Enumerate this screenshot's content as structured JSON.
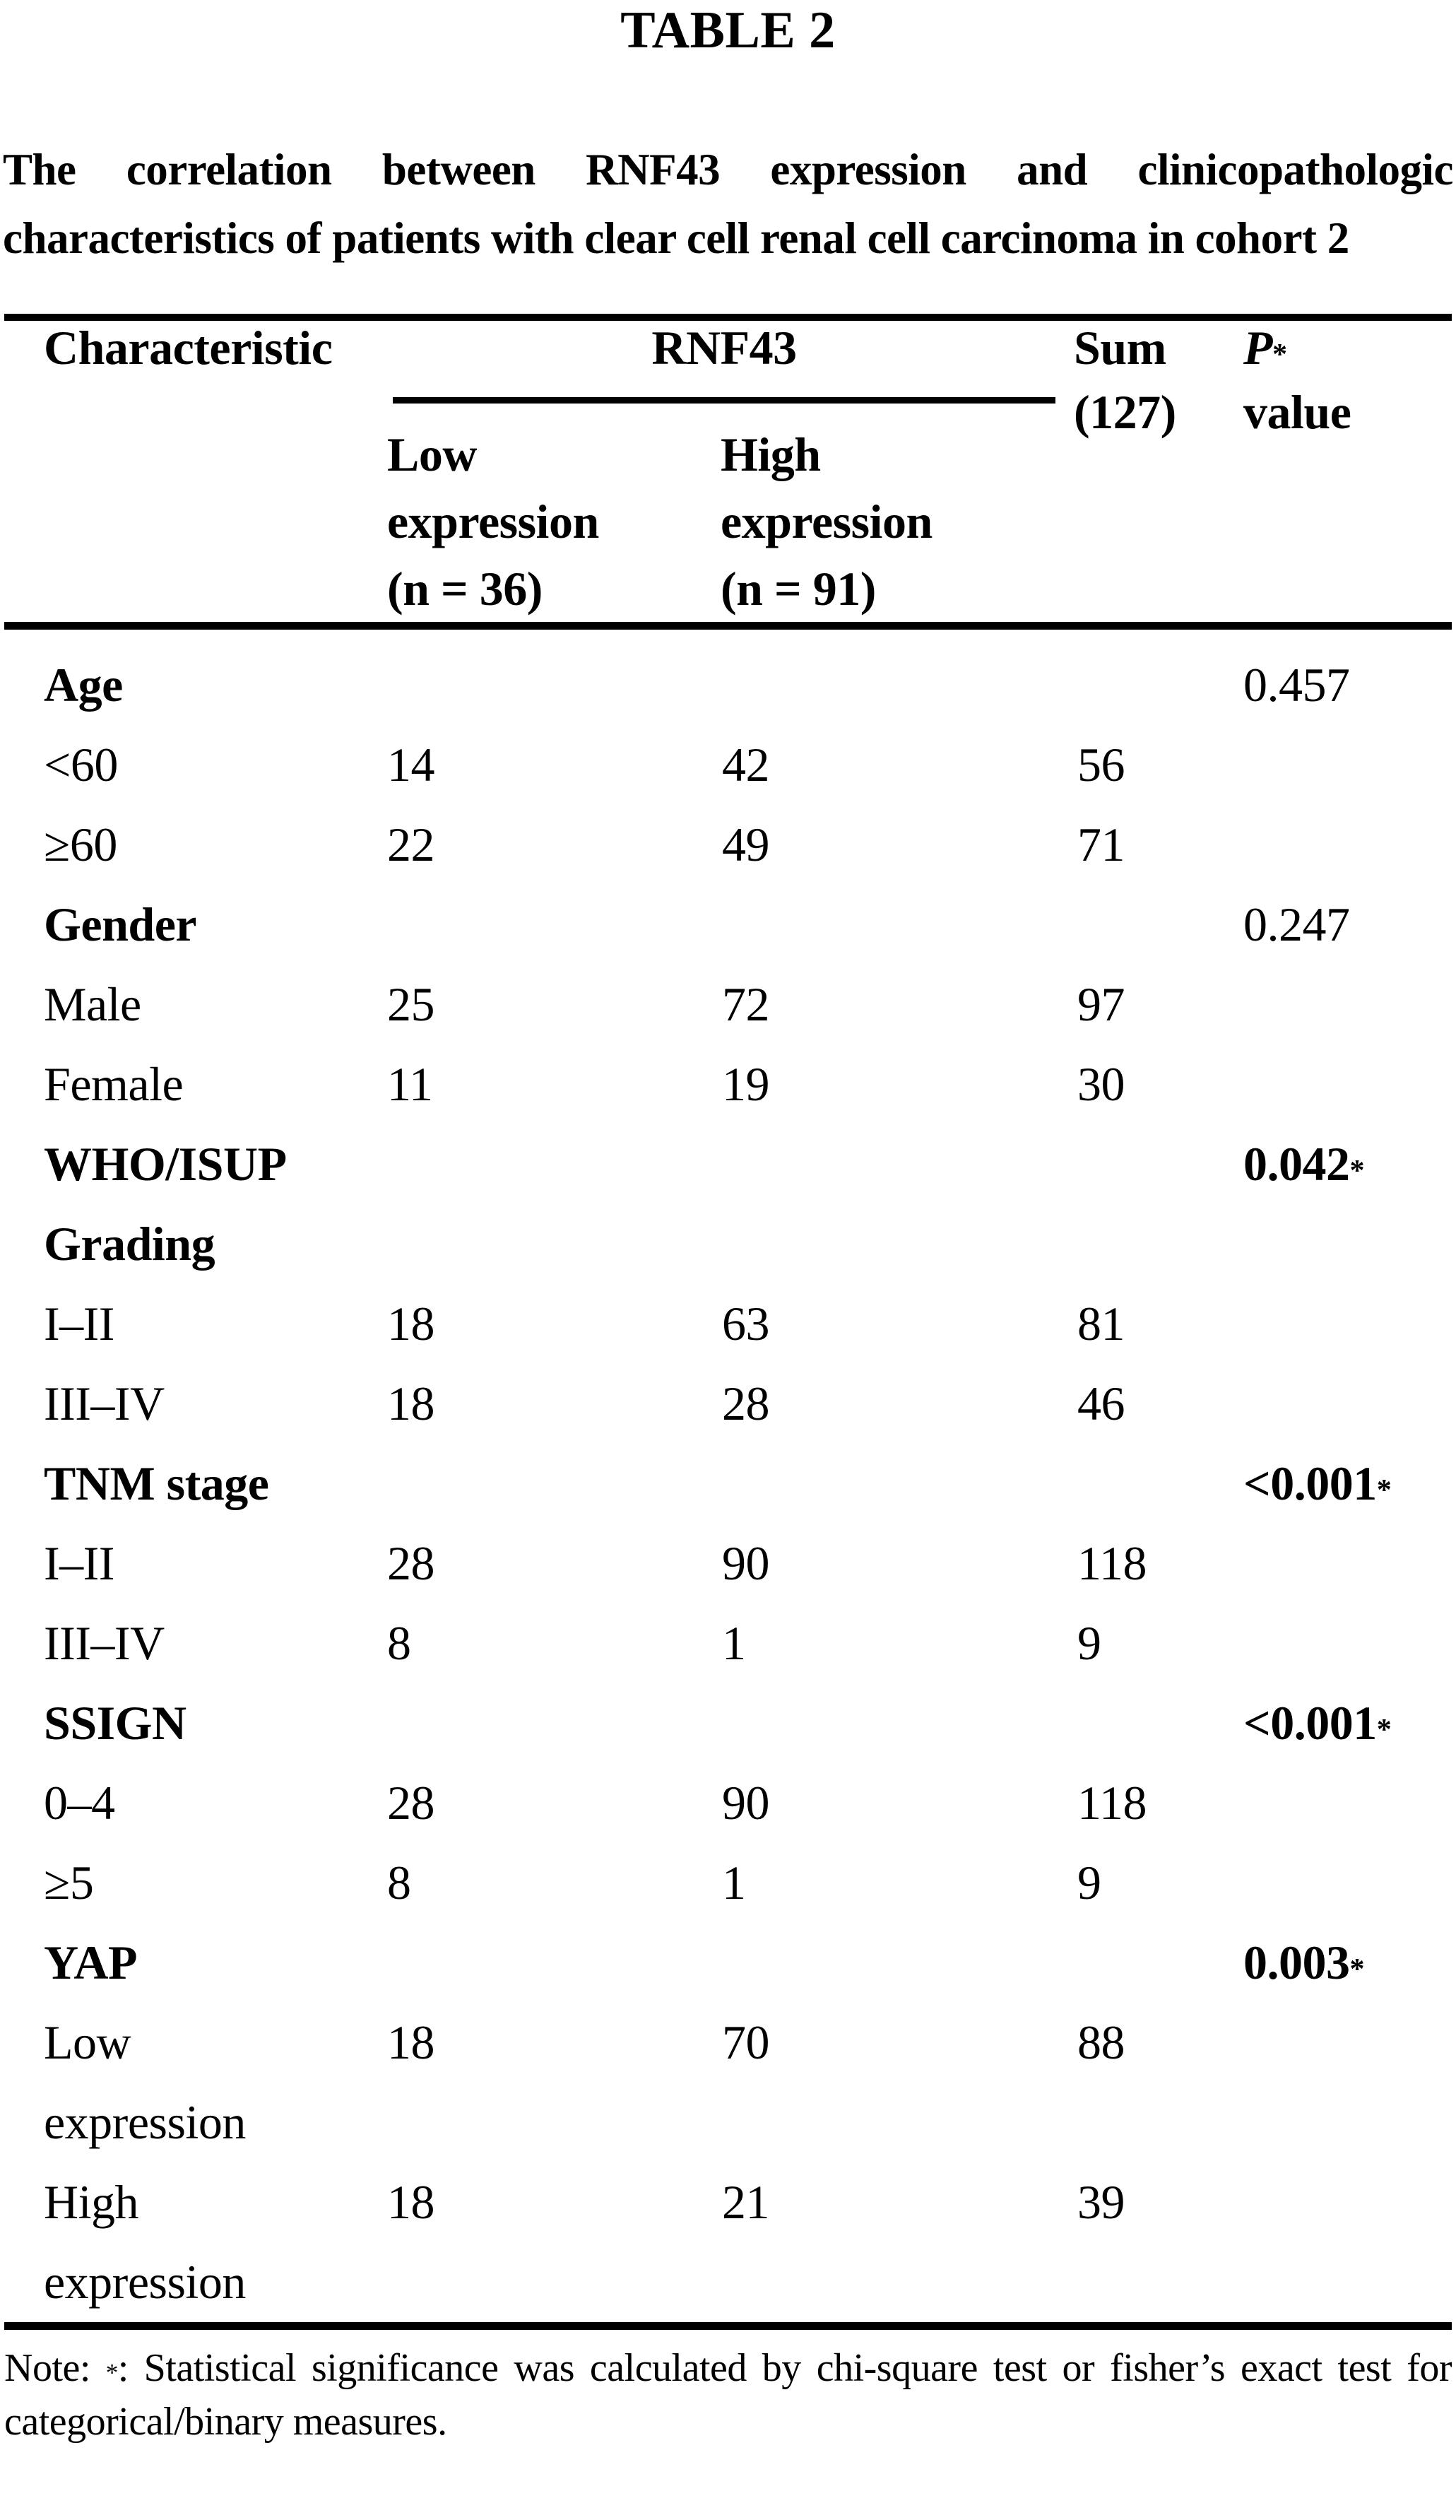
{
  "page": {
    "table_label": "TABLE 2",
    "title": "The correlation between RNF43 expression and clinicopathologic characteristics of patients with clear cell renal cell carcinoma in cohort 2"
  },
  "colors": {
    "text": "#000000",
    "background": "#ffffff",
    "rule": "#000000"
  },
  "header": {
    "characteristic": "Characteristic",
    "group": "RNF43",
    "sum_line1": "Sum",
    "sum_line2": "(127)",
    "p_symbol": "P",
    "p_star": "*",
    "p_word": "value",
    "low_col": "Low\nexpression\n(n = 36)",
    "high_col": "High\nexpression\n(n = 91)"
  },
  "rows": [
    {
      "label": "Age",
      "low": "",
      "high": "",
      "sum": "",
      "p": "0.457",
      "sig": false,
      "category": true
    },
    {
      "label": "<60",
      "low": "14",
      "high": "42",
      "sum": "56",
      "p": "",
      "sig": false,
      "category": false
    },
    {
      "label": "≥60",
      "low": "22",
      "high": "49",
      "sum": "71",
      "p": "",
      "sig": false,
      "category": false
    },
    {
      "label": "Gender",
      "low": "",
      "high": "",
      "sum": "",
      "p": "0.247",
      "sig": false,
      "category": true
    },
    {
      "label": "Male",
      "low": "25",
      "high": "72",
      "sum": "97",
      "p": "",
      "sig": false,
      "category": false
    },
    {
      "label": "Female",
      "low": "11",
      "high": "19",
      "sum": "30",
      "p": "",
      "sig": false,
      "category": false
    },
    {
      "label": "WHO/ISUP\nGrading",
      "low": "",
      "high": "",
      "sum": "",
      "p": "0.042",
      "sig": true,
      "category": true
    },
    {
      "label": "I–II",
      "low": "18",
      "high": "63",
      "sum": "81",
      "p": "",
      "sig": false,
      "category": false
    },
    {
      "label": "III–IV",
      "low": "18",
      "high": "28",
      "sum": "46",
      "p": "",
      "sig": false,
      "category": false
    },
    {
      "label": "TNM stage",
      "low": "",
      "high": "",
      "sum": "",
      "p": "<0.001",
      "sig": true,
      "category": true
    },
    {
      "label": "I–II",
      "low": "28",
      "high": "90",
      "sum": "118",
      "p": "",
      "sig": false,
      "category": false
    },
    {
      "label": "III–IV",
      "low": "8",
      "high": "1",
      "sum": "9",
      "p": "",
      "sig": false,
      "category": false
    },
    {
      "label": "SSIGN",
      "low": "",
      "high": "",
      "sum": "",
      "p": "<0.001",
      "sig": true,
      "category": true
    },
    {
      "label": "0–4",
      "low": "28",
      "high": "90",
      "sum": "118",
      "p": "",
      "sig": false,
      "category": false
    },
    {
      "label": "≥5",
      "low": "8",
      "high": "1",
      "sum": "9",
      "p": "",
      "sig": false,
      "category": false
    },
    {
      "label": "YAP",
      "low": "",
      "high": "",
      "sum": "",
      "p": "0.003",
      "sig": true,
      "category": true
    },
    {
      "label": "Low\nexpression",
      "low": "18",
      "high": "70",
      "sum": "88",
      "p": "",
      "sig": false,
      "category": false
    },
    {
      "label": "High\nexpression",
      "low": "18",
      "high": "21",
      "sum": "39",
      "p": "",
      "sig": false,
      "category": false
    }
  ],
  "footnote": {
    "prefix": "Note: ",
    "star": "*",
    "text": ": Statistical significance was calculated by chi-square test or fisher’s exact test for categorical/binary measures."
  }
}
